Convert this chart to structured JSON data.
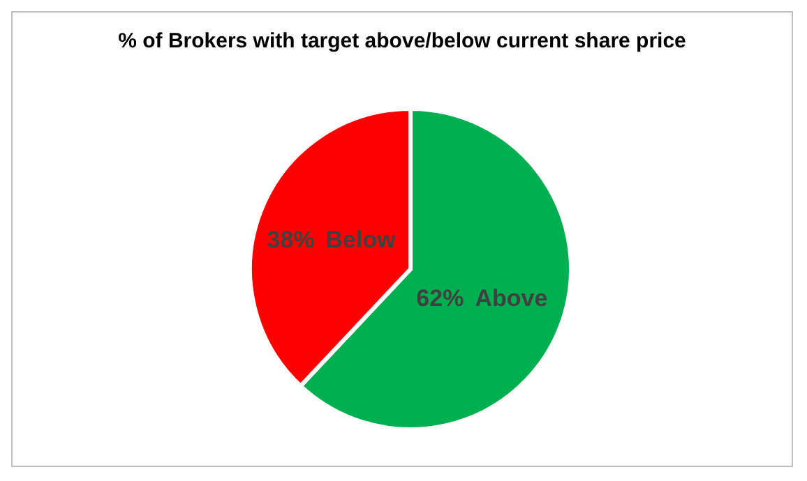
{
  "chart_data": {
    "type": "pie",
    "title": "% of Brokers with target above/below current share price",
    "categories": [
      "Above",
      "Below"
    ],
    "values": [
      62,
      38
    ],
    "colors": [
      "#00b050",
      "#ff0000"
    ],
    "value_labels": [
      "62%",
      "38%"
    ],
    "legend": false
  }
}
